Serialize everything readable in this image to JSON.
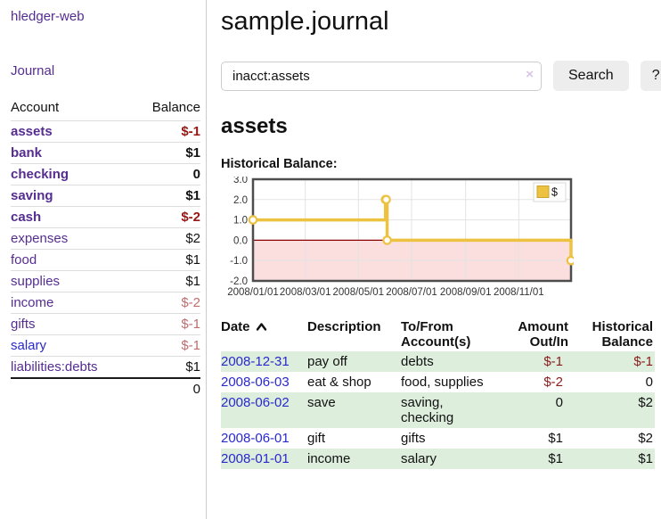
{
  "colors": {
    "accent_gold": "#edc240",
    "link_purple": "#552d90",
    "link_blue": "#2929cc",
    "neg_strong": "#971616",
    "neg_soft": "#bd6f6f",
    "neg_table": "#8b1c1c",
    "row_green": "#ddeedd",
    "below_zero_pink": "#fbdede",
    "zero_line": "#8b0000",
    "chart_border": "#4d4d4d"
  },
  "sidebar": {
    "brand": "hledger-web",
    "journal_link": "Journal",
    "accounts": {
      "headers": {
        "account": "Account",
        "balance": "Balance"
      },
      "rows": [
        {
          "name": "assets",
          "balance": "$-1",
          "level": 1,
          "matched": true,
          "balance_tone": "neg-strong",
          "link": "purple"
        },
        {
          "name": "bank",
          "balance": "$1",
          "level": 2,
          "matched": true,
          "balance_tone": "pos",
          "link": "purple"
        },
        {
          "name": "checking",
          "balance": "0",
          "level": 3,
          "matched": true,
          "balance_tone": "pos",
          "link": "purple"
        },
        {
          "name": "saving",
          "balance": "$1",
          "level": 3,
          "matched": true,
          "balance_tone": "pos",
          "link": "purple"
        },
        {
          "name": "cash",
          "balance": "$-2",
          "level": 2,
          "matched": true,
          "balance_tone": "neg-strong",
          "link": "purple"
        },
        {
          "name": "expenses",
          "balance": "$2",
          "level": 1,
          "matched": false,
          "balance_tone": "pos",
          "link": "purple"
        },
        {
          "name": "food",
          "balance": "$1",
          "level": 2,
          "matched": false,
          "balance_tone": "pos",
          "link": "purple"
        },
        {
          "name": "supplies",
          "balance": "$1",
          "level": 2,
          "matched": false,
          "balance_tone": "pos",
          "link": "purple"
        },
        {
          "name": "income",
          "balance": "$-2",
          "level": 1,
          "matched": false,
          "balance_tone": "neg-soft",
          "link": "purple"
        },
        {
          "name": "gifts",
          "balance": "$-1",
          "level": 2,
          "matched": false,
          "balance_tone": "neg-soft",
          "link": "purple"
        },
        {
          "name": "salary",
          "balance": "$-1",
          "level": 2,
          "matched": false,
          "balance_tone": "neg-soft",
          "link": "blue"
        },
        {
          "name": "liabilities:debts",
          "balance": "$1",
          "level": 1,
          "matched": false,
          "balance_tone": "pos",
          "link": "purple"
        }
      ],
      "total": "0"
    }
  },
  "main": {
    "title": "sample.journal",
    "search": {
      "value": "inacct:assets",
      "clear_icon": "×",
      "button_label": "Search",
      "help_label": "?"
    },
    "account_heading": "assets",
    "chart_title": "Historical Balance:",
    "register": {
      "headers": [
        {
          "lines": [
            "Date"
          ],
          "sort": "asc",
          "align": "left"
        },
        {
          "lines": [
            "Description"
          ],
          "align": "left"
        },
        {
          "lines": [
            "To/From",
            "Account(s)"
          ],
          "align": "left"
        },
        {
          "lines": [
            "Amount",
            "Out/In"
          ],
          "align": "right"
        },
        {
          "lines": [
            "Historical",
            "Balance"
          ],
          "align": "right"
        }
      ],
      "rows": [
        {
          "date": "2008-12-31",
          "description": "pay off",
          "accounts": "debts",
          "amount": "$-1",
          "amount_neg": true,
          "balance": "$-1",
          "balance_neg": true
        },
        {
          "date": "2008-06-03",
          "description": "eat & shop",
          "accounts": "food, supplies",
          "amount": "$-2",
          "amount_neg": true,
          "balance": "0",
          "balance_neg": false
        },
        {
          "date": "2008-06-02",
          "description": "save",
          "accounts": "saving, checking",
          "amount": "0",
          "amount_neg": false,
          "balance": "$2",
          "balance_neg": false
        },
        {
          "date": "2008-06-01",
          "description": "gift",
          "accounts": "gifts",
          "amount": "$1",
          "amount_neg": false,
          "balance": "$2",
          "balance_neg": false
        },
        {
          "date": "2008-01-01",
          "description": "income",
          "accounts": "salary",
          "amount": "$1",
          "amount_neg": false,
          "balance": "$1",
          "balance_neg": false
        }
      ]
    }
  },
  "chart_data": {
    "type": "line",
    "title": "Historical Balance",
    "style": "steps",
    "series": [
      {
        "name": "$",
        "color": "#edc240",
        "points": [
          [
            "2008-01-01",
            1
          ],
          [
            "2008-06-01",
            2
          ],
          [
            "2008-06-02",
            2
          ],
          [
            "2008-06-03",
            0
          ],
          [
            "2008-12-31",
            -1
          ]
        ]
      }
    ],
    "x_start": "2008-01-01",
    "x_end": "2008-12-31",
    "x_ticks": [
      {
        "label": "2008/01/01",
        "date": "2008-01-01"
      },
      {
        "label": "2008/03/01",
        "date": "2008-03-01"
      },
      {
        "label": "2008/05/01",
        "date": "2008-05-01"
      },
      {
        "label": "2008/07/01",
        "date": "2008-07-01"
      },
      {
        "label": "2008/09/01",
        "date": "2008-09-01"
      },
      {
        "label": "2008/11/01",
        "date": "2008-11-01"
      }
    ],
    "y_ticks": [
      3.0,
      2.0,
      1.0,
      0.0,
      -1.0,
      -2.0
    ],
    "ylim": [
      -2,
      3
    ],
    "legend": {
      "label": "$",
      "position": "top-right"
    },
    "grid": true
  }
}
